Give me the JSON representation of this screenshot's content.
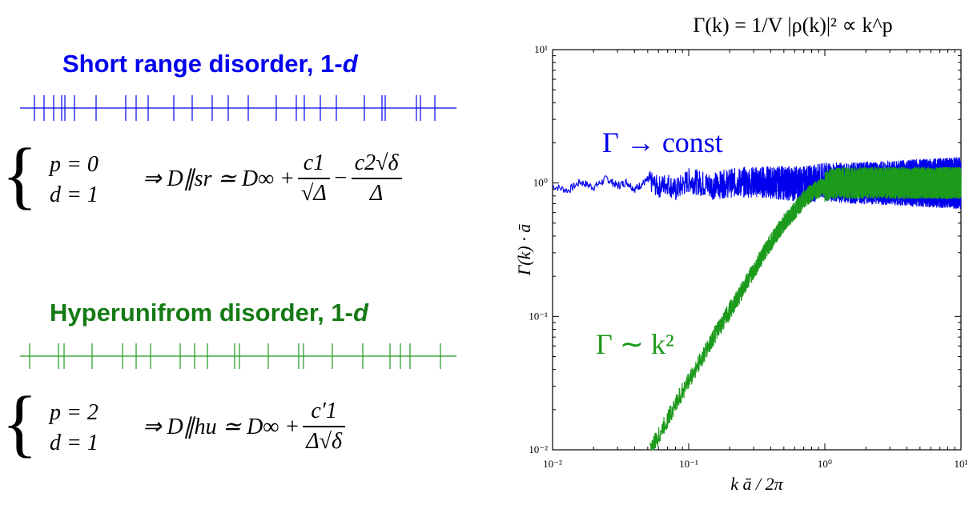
{
  "colors": {
    "blue": "#0000ee",
    "green": "#1b9a1b",
    "hu_heading": "#157a15"
  },
  "left": {
    "sr": {
      "heading_main": "Short range disorder, 1-",
      "heading_suffix": "d",
      "cond_p": "p = 0",
      "cond_d": "d = 1",
      "formula_left": "⇒ D∥sr ≃ D∞ +",
      "frac1_num": "c1",
      "frac1_den": "√Δ",
      "minus": "−",
      "frac2_num": "c2√δ",
      "frac2_den": "Δ"
    },
    "hu": {
      "heading_main": "Hyperunifrom disorder, 1-",
      "heading_suffix": "d",
      "cond_p": "p = 2",
      "cond_d": "d = 1",
      "formula_left": "⇒ D∥hu ≃ D∞ +",
      "frac1_num": "c′1",
      "frac1_den": "Δ√δ"
    }
  },
  "chart_data": {
    "type": "line",
    "title": "Γ(k) = 1/V |ρ(k)|² ∝ k^p",
    "xlabel": "k ā / 2π",
    "ylabel": "Γ(k) · ā",
    "xscale": "log",
    "yscale": "log",
    "xlim": [
      0.01,
      10
    ],
    "ylim": [
      0.01,
      10
    ],
    "xticks": [
      "10⁻²",
      "10⁻¹",
      "10⁰",
      "10¹"
    ],
    "yticks": [
      "10⁻²",
      "10⁻¹",
      "10⁰",
      "10¹"
    ],
    "grid": false,
    "annotations": [
      {
        "text": "Γ → const",
        "color": "blue"
      },
      {
        "text": "Γ ∼ k²",
        "color": "green"
      }
    ],
    "series": [
      {
        "color": "blue",
        "x": [
          0.01,
          0.013,
          0.016,
          0.02,
          0.025,
          0.03,
          0.035,
          0.04,
          0.05,
          0.06,
          0.07,
          0.08,
          0.1,
          0.15,
          0.2,
          0.3,
          0.5,
          0.7,
          1,
          1.5,
          2,
          3,
          5,
          7,
          10
        ],
        "y": [
          0.95,
          0.88,
          1.02,
          0.93,
          1.08,
          0.95,
          1.02,
          0.9,
          1.05,
          0.93,
          1.0,
          0.88,
          1.05,
          0.95,
          1.0,
          1.02,
          1.0,
          0.98,
          1.02,
          1.0,
          1.0,
          1.0,
          1.0,
          1.0,
          1.0
        ]
      },
      {
        "color": "green",
        "x": [
          0.052,
          0.06,
          0.07,
          0.08,
          0.1,
          0.12,
          0.15,
          0.2,
          0.25,
          0.3,
          0.4,
          0.5,
          0.6,
          0.7,
          0.8,
          1,
          1.2,
          1.5,
          2,
          3,
          5,
          7,
          10
        ],
        "y": [
          0.01,
          0.0125,
          0.017,
          0.022,
          0.033,
          0.045,
          0.068,
          0.11,
          0.16,
          0.22,
          0.36,
          0.5,
          0.62,
          0.75,
          0.85,
          0.95,
          1.0,
          1.0,
          1.0,
          1.0,
          1.0,
          1.0,
          1.0
        ]
      }
    ]
  }
}
